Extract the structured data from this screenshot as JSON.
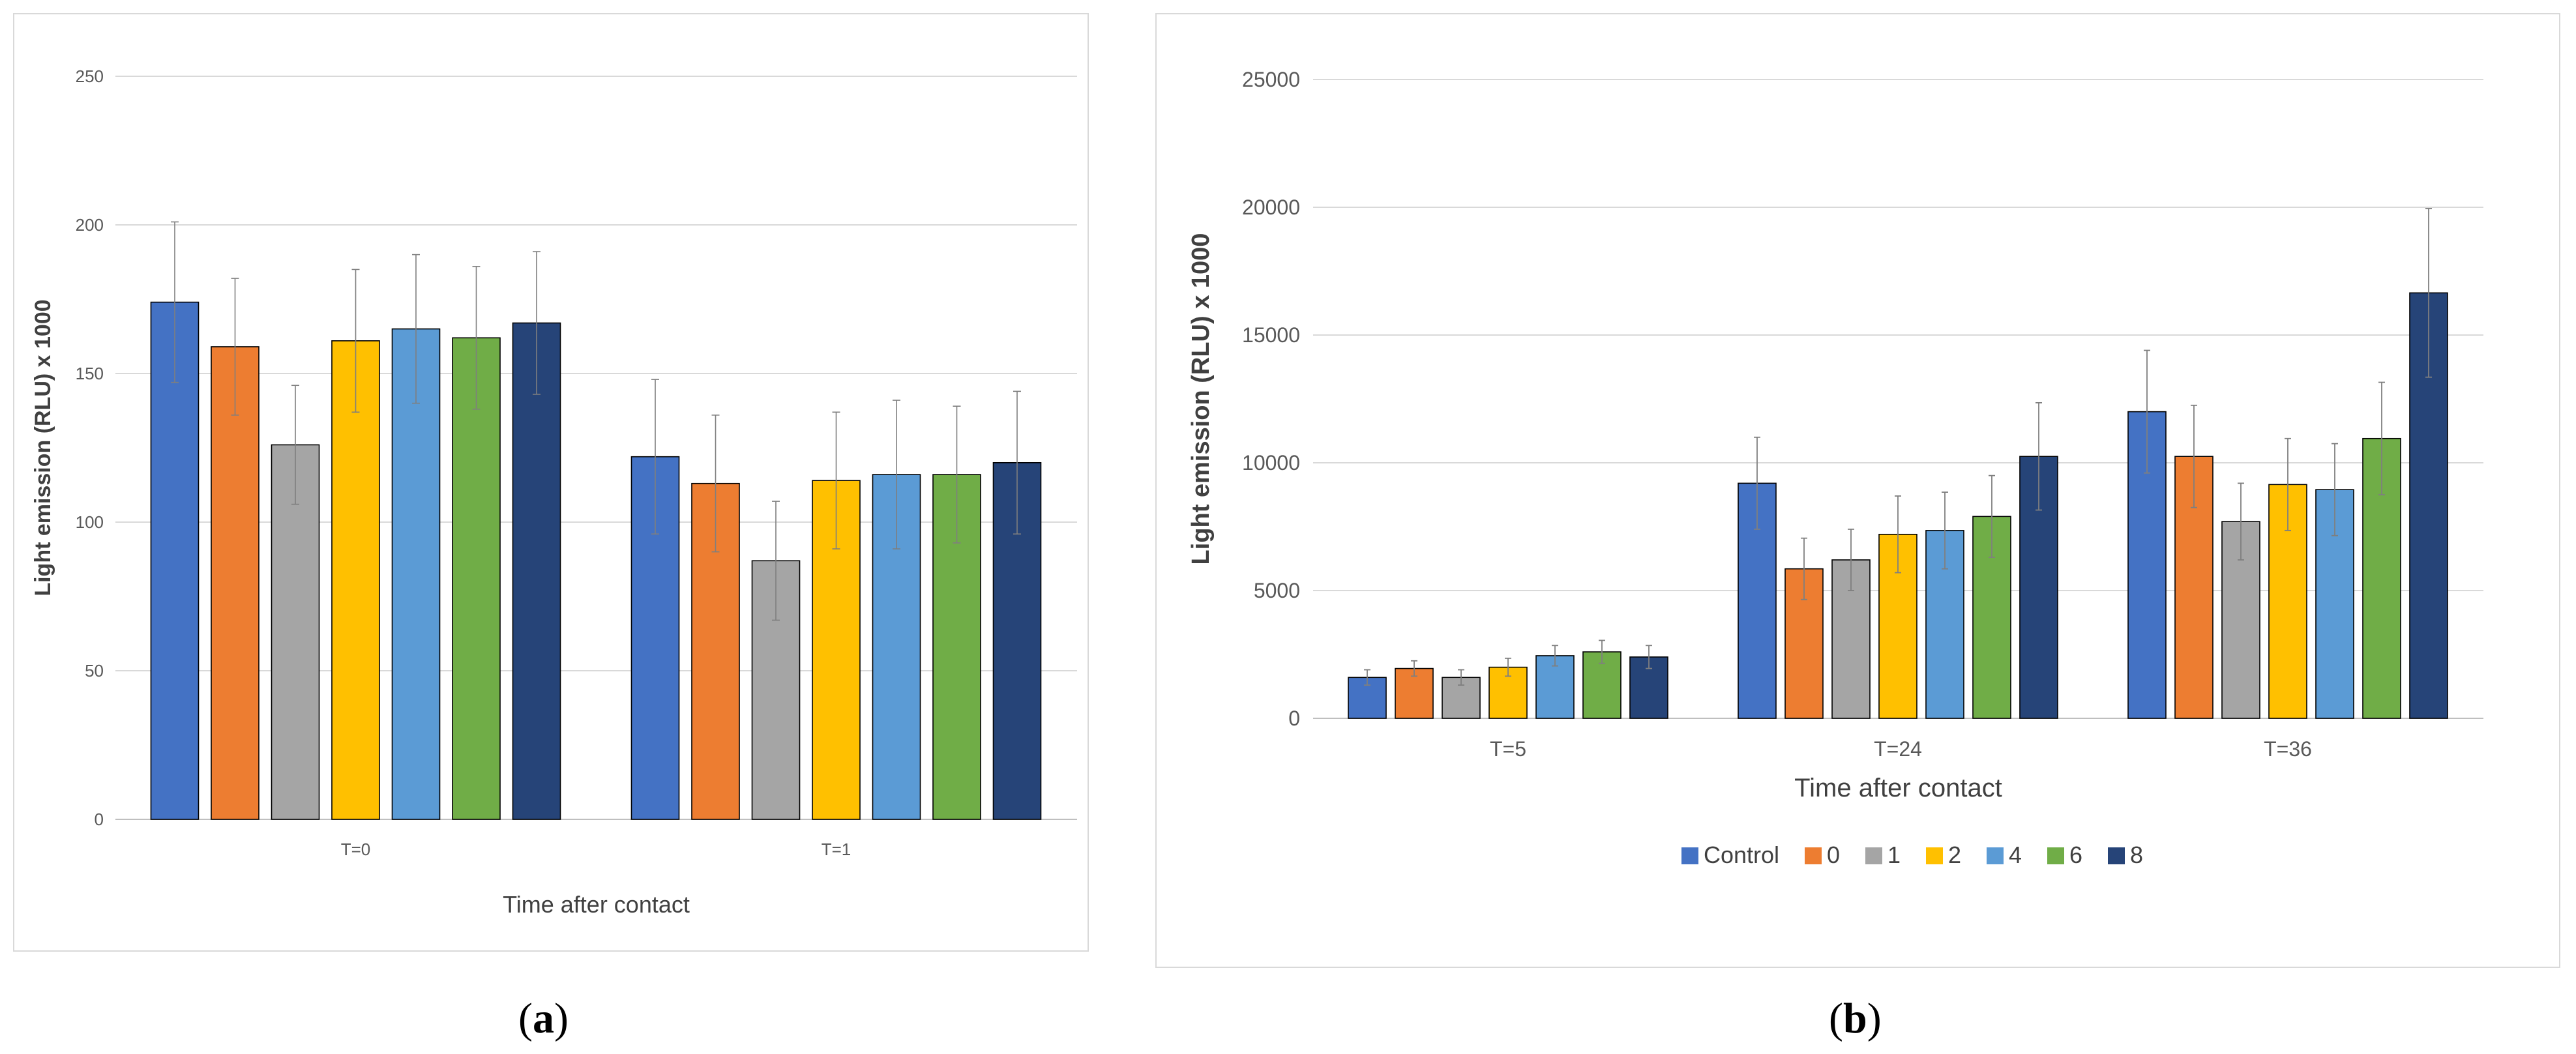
{
  "colors": {
    "Control": "#4472c4",
    "0": "#ed7d31",
    "1": "#a5a5a5",
    "2": "#ffc000",
    "4": "#5b9bd5",
    "6": "#70ad47",
    "8": "#264478",
    "grid": "#d9d9d9",
    "errorbar": "#7f7f7f"
  },
  "chart_data": [
    {
      "panel": "a",
      "type": "bar",
      "title": "",
      "xlabel": "Time after contact",
      "ylabel": "Light emission (RLU) x 1000",
      "ylim": [
        0,
        250
      ],
      "yticks": [
        0,
        50,
        100,
        150,
        200,
        250
      ],
      "grid": true,
      "legend": "bottom",
      "categories": [
        "T=0",
        "T=1"
      ],
      "series": [
        {
          "name": "Control",
          "values": [
            174,
            122
          ],
          "errors": [
            27,
            26
          ]
        },
        {
          "name": "0",
          "values": [
            159,
            113
          ],
          "errors": [
            23,
            23
          ]
        },
        {
          "name": "1",
          "values": [
            126,
            87
          ],
          "errors": [
            20,
            20
          ]
        },
        {
          "name": "2",
          "values": [
            161,
            114
          ],
          "errors": [
            24,
            23
          ]
        },
        {
          "name": "4",
          "values": [
            165,
            116
          ],
          "errors": [
            25,
            25
          ]
        },
        {
          "name": "6",
          "values": [
            162,
            116
          ],
          "errors": [
            24,
            23
          ]
        },
        {
          "name": "8",
          "values": [
            167,
            120
          ],
          "errors": [
            24,
            24
          ]
        }
      ]
    },
    {
      "panel": "b",
      "type": "bar",
      "title": "",
      "xlabel": "Time after contact",
      "ylabel": "Light emission (RLU) x 1000",
      "ylim": [
        0,
        25000
      ],
      "yticks": [
        0,
        5000,
        10000,
        15000,
        20000,
        25000
      ],
      "grid": true,
      "legend": "bottom",
      "categories": [
        "T=5",
        "T=24",
        "T=36"
      ],
      "series": [
        {
          "name": "Control",
          "values": [
            1600,
            9200,
            12000
          ],
          "errors": [
            300,
            1800,
            2400
          ]
        },
        {
          "name": "0",
          "values": [
            1950,
            5850,
            10250
          ],
          "errors": [
            300,
            1200,
            2000
          ]
        },
        {
          "name": "1",
          "values": [
            1600,
            6200,
            7700
          ],
          "errors": [
            300,
            1200,
            1500
          ]
        },
        {
          "name": "2",
          "values": [
            2000,
            7200,
            9150
          ],
          "errors": [
            350,
            1500,
            1800
          ]
        },
        {
          "name": "4",
          "values": [
            2450,
            7350,
            8950
          ],
          "errors": [
            400,
            1500,
            1800
          ]
        },
        {
          "name": "6",
          "values": [
            2600,
            7900,
            10950
          ],
          "errors": [
            450,
            1600,
            2200
          ]
        },
        {
          "name": "8",
          "values": [
            2400,
            10250,
            16650
          ],
          "errors": [
            450,
            2100,
            3300
          ]
        }
      ]
    }
  ],
  "captions": [
    {
      "open": "(",
      "letter": "a",
      "close": ")"
    },
    {
      "open": "(",
      "letter": "b",
      "close": ")"
    }
  ]
}
